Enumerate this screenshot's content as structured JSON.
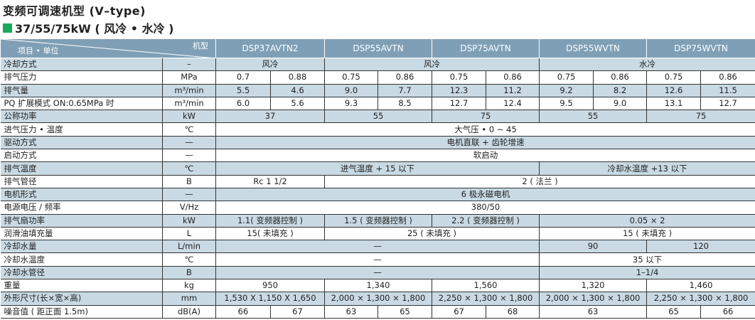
{
  "title": "变频可调速机型 (V–type)",
  "subtitle": "37/55/75kW ( 风冷 • 水冷 )",
  "colors": {
    "header_bg": "#7f9fb6",
    "row_alt_bg": "#c9dae4",
    "marker": "#1aa85a"
  },
  "header": {
    "corner_model": "机型",
    "corner_item": "项目 • 单位",
    "models": [
      "DSP37AVTN2",
      "DSP55AVTN",
      "DSP75AVTN",
      "DSP55WVTN",
      "DSP75WVTN"
    ]
  },
  "rows": [
    {
      "label": "冷却方式",
      "unit": "–",
      "cells": [
        {
          "v": "风冷",
          "span": 2
        },
        {
          "v": "风冷",
          "span": 4
        },
        {
          "v": "水冷",
          "span": 4
        }
      ]
    },
    {
      "label": "排气压力",
      "unit": "MPa",
      "cells": [
        {
          "v": "0.7"
        },
        {
          "v": "0.88"
        },
        {
          "v": "0.75"
        },
        {
          "v": "0.86"
        },
        {
          "v": "0.75"
        },
        {
          "v": "0.86"
        },
        {
          "v": "0.75"
        },
        {
          "v": "0.86"
        },
        {
          "v": "0.75"
        },
        {
          "v": "0.86"
        }
      ]
    },
    {
      "label": "排气量",
      "unit": "m³/min",
      "cells": [
        {
          "v": "5.5"
        },
        {
          "v": "4.6"
        },
        {
          "v": "9.0"
        },
        {
          "v": "7.7"
        },
        {
          "v": "12.3"
        },
        {
          "v": "11.2"
        },
        {
          "v": "9.2"
        },
        {
          "v": "8.2"
        },
        {
          "v": "12.6"
        },
        {
          "v": "11.5"
        }
      ]
    },
    {
      "label": "PQ 扩展模式 ON:0.65MPa 时",
      "unit": "m³/min",
      "cells": [
        {
          "v": "6.0"
        },
        {
          "v": "5.6"
        },
        {
          "v": "9.3"
        },
        {
          "v": "8.5"
        },
        {
          "v": "12.7"
        },
        {
          "v": "12.4"
        },
        {
          "v": "9.5"
        },
        {
          "v": "9.0"
        },
        {
          "v": "13.1"
        },
        {
          "v": "12.7"
        }
      ]
    },
    {
      "label": "公称功率",
      "unit": "kW",
      "cells": [
        {
          "v": "37",
          "span": 2
        },
        {
          "v": "55",
          "span": 2
        },
        {
          "v": "75",
          "span": 2
        },
        {
          "v": "55",
          "span": 2
        },
        {
          "v": "75",
          "span": 2
        }
      ]
    },
    {
      "label": "进气压力 • 温度",
      "unit": "℃",
      "cells": [
        {
          "v": "大气压 • 0 ~ 45",
          "span": 10
        }
      ]
    },
    {
      "label": "驱动方式",
      "unit": "—",
      "cells": [
        {
          "v": "电机直联 + 齿轮增速",
          "span": 10
        }
      ]
    },
    {
      "label": "启动方式",
      "unit": "—",
      "cells": [
        {
          "v": "软启动",
          "span": 10
        }
      ]
    },
    {
      "label": "排气温度",
      "unit": "℃",
      "cells": [
        {
          "v": "进气温度 + 15 以下",
          "span": 6
        },
        {
          "v": "冷却水温度 +13 以下",
          "span": 4
        }
      ]
    },
    {
      "label": "排气管径",
      "unit": "B",
      "cells": [
        {
          "v": "Rc 1 1/2",
          "span": 2
        },
        {
          "v": "2 ( 法兰 )",
          "span": 8
        }
      ]
    },
    {
      "label": "电机形式",
      "unit": "—",
      "cells": [
        {
          "v": "6 极永磁电机",
          "span": 10
        }
      ]
    },
    {
      "label": "电源电压 / 频率",
      "unit": "V/Hz",
      "cells": [
        {
          "v": "380/50",
          "span": 10
        }
      ]
    },
    {
      "label": "排气扇功率",
      "unit": "kW",
      "cells": [
        {
          "v": "1.1( 变频器控制 )",
          "span": 2
        },
        {
          "v": "1.5 ( 变频器控制 )",
          "span": 2
        },
        {
          "v": "2.2 ( 变频器控制 )",
          "span": 2
        },
        {
          "v": "0.05 × 2",
          "span": 4
        }
      ]
    },
    {
      "label": "润滑油填充量",
      "unit": "L",
      "cells": [
        {
          "v": "15( 未填充 )",
          "span": 2
        },
        {
          "v": "25 ( 未填充 )",
          "span": 4
        },
        {
          "v": "15 ( 未填充 )",
          "span": 4
        }
      ]
    },
    {
      "label": "冷却水量",
      "unit": "L/min",
      "cells": [
        {
          "v": "—",
          "span": 6
        },
        {
          "v": "90",
          "span": 2
        },
        {
          "v": "120",
          "span": 2
        }
      ]
    },
    {
      "label": "冷却水温度",
      "unit": "℃",
      "cells": [
        {
          "v": "—",
          "span": 6
        },
        {
          "v": "35 以下",
          "span": 4
        }
      ]
    },
    {
      "label": "冷却水管径",
      "unit": "B",
      "cells": [
        {
          "v": "—",
          "span": 6
        },
        {
          "v": "1–1/4",
          "span": 4
        }
      ]
    },
    {
      "label": "重量",
      "unit": "kg",
      "cells": [
        {
          "v": "950",
          "span": 2
        },
        {
          "v": "1,340",
          "span": 2
        },
        {
          "v": "1,560",
          "span": 2
        },
        {
          "v": "1,320",
          "span": 2
        },
        {
          "v": "1,460",
          "span": 2
        }
      ]
    },
    {
      "label": "外形尺寸(长×宽×高)",
      "unit": "mm",
      "cells": [
        {
          "v": "1,530 X 1,150 X 1,650",
          "span": 2
        },
        {
          "v": "2,000 × 1,300 × 1,800",
          "span": 2
        },
        {
          "v": "2,250 × 1,300 × 1,800",
          "span": 2
        },
        {
          "v": "2,000 × 1,300 × 1,800",
          "span": 2
        },
        {
          "v": "2,250 × 1,300 × 1,800",
          "span": 2
        }
      ]
    },
    {
      "label": "噪音值 ( 距正面 1.5m)",
      "unit": "dB(A)",
      "cells": [
        {
          "v": "66"
        },
        {
          "v": "67"
        },
        {
          "v": "63"
        },
        {
          "v": "65"
        },
        {
          "v": "67"
        },
        {
          "v": "68"
        },
        {
          "v": "63",
          "span": 2
        },
        {
          "v": "65"
        },
        {
          "v": "66"
        }
      ]
    }
  ]
}
